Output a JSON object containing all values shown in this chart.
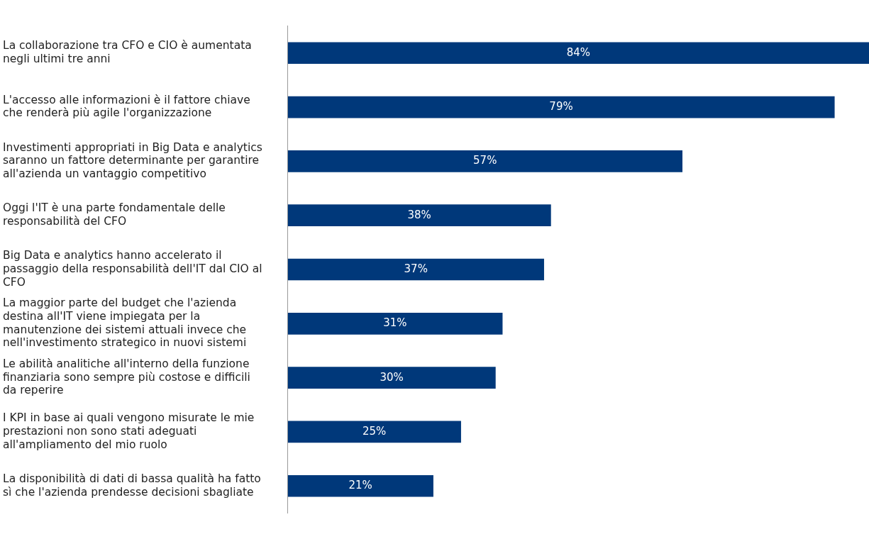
{
  "chart_data": {
    "type": "bar",
    "orientation": "horizontal",
    "categories": [
      "La collaborazione tra CFO e CIO è aumentata negli ultimi tre anni",
      "L'accesso alle informazioni è il fattore chiave che renderà più agile l'organizzazione",
      "Investimenti appropriati in Big Data e analytics saranno un fattore determinante per garantire all'azienda un vantaggio competitivo",
      "Oggi l'IT è una parte fondamentale delle responsabilità del CFO",
      "Big Data e analytics hanno accelerato il passaggio della responsabilità dell'IT dal CIO al CFO",
      "La maggior parte del budget che l'azienda destina all'IT viene impiegata per la manutenzione dei sistemi attuali invece che nell'investimento strategico in nuovi sistemi",
      "Le abilità analitiche all'interno della funzione finanziaria sono sempre più costose e difficili da reperire",
      "I KPI in base ai quali vengono misurate le mie prestazioni non sono stati adeguati all'ampliamento del mio ruolo",
      "La disponibilità di dati di bassa qualità ha fatto sì che l'azienda prendesse decisioni sbagliate"
    ],
    "values": [
      84,
      79,
      57,
      38,
      37,
      31,
      30,
      25,
      21
    ],
    "value_labels": [
      "84%",
      "79%",
      "57%",
      "38%",
      "37%",
      "31%",
      "30%",
      "25%",
      "21%"
    ],
    "color": "#00387a",
    "tick_labels": "y"
  }
}
